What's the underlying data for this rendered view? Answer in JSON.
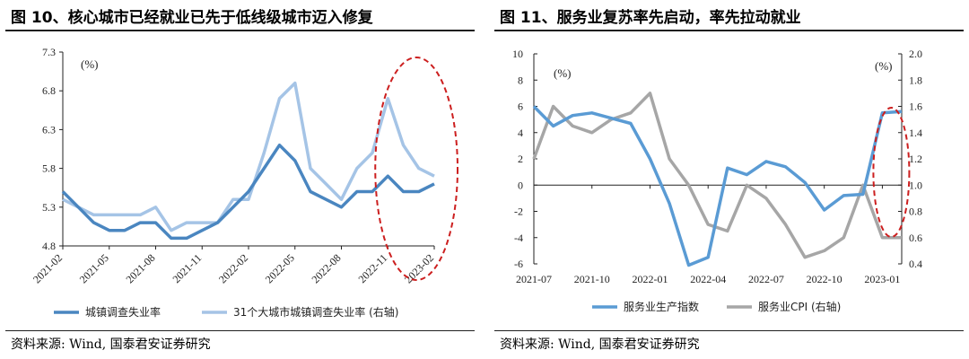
{
  "charts": [
    {
      "title": "图 10、核心城市已经就业已先于低线级城市迈入修复",
      "source": "资料来源: Wind, 国泰君安证券研究",
      "left_unit": "(%)",
      "legend": [
        "城镇调查失业率",
        "31个大城市城镇调查失业率 (右轴)"
      ]
    },
    {
      "title": "图 11、服务业复苏率先启动，率先拉动就业",
      "source": "资料来源: Wind, 国泰君安证券研究",
      "left_unit": "(%)",
      "right_unit": "(%)",
      "legend": [
        "服务业生产指数",
        "服务业CPI (右轴)"
      ]
    }
  ],
  "chart_data": [
    {
      "type": "line",
      "title": "图 10、核心城市已经就业已先于低线级城市迈入修复",
      "x": [
        "2021-02",
        "2021-03",
        "2021-04",
        "2021-05",
        "2021-06",
        "2021-07",
        "2021-08",
        "2021-09",
        "2021-10",
        "2021-11",
        "2021-12",
        "2022-01",
        "2022-02",
        "2022-03",
        "2022-04",
        "2022-05",
        "2022-06",
        "2022-07",
        "2022-08",
        "2022-09",
        "2022-10",
        "2022-11",
        "2022-12",
        "2023-01",
        "2023-02"
      ],
      "xticks": [
        "2021-02",
        "2021-05",
        "2021-08",
        "2021-11",
        "2022-02",
        "2022-05",
        "2022-08",
        "2022-11",
        "2023-02"
      ],
      "ylim": [
        4.8,
        7.3
      ],
      "yticks": [
        "4.8",
        "5.3",
        "5.8",
        "6.3",
        "6.8",
        "7.3"
      ],
      "series": [
        {
          "name": "城镇调查失业率",
          "color": "#4a86c0",
          "values": [
            5.5,
            5.3,
            5.1,
            5.0,
            5.0,
            5.1,
            5.1,
            4.9,
            4.9,
            5.0,
            5.1,
            5.3,
            5.5,
            5.8,
            6.1,
            5.9,
            5.5,
            5.4,
            5.3,
            5.5,
            5.5,
            5.7,
            5.5,
            5.5,
            5.6
          ]
        },
        {
          "name": "31个大城市城镇调查失业率 (右轴)",
          "color": "#a5c4e6",
          "values": [
            5.4,
            5.3,
            5.2,
            5.2,
            5.2,
            5.2,
            5.3,
            5.0,
            5.1,
            5.1,
            5.1,
            5.4,
            5.4,
            6.0,
            6.7,
            6.9,
            5.8,
            5.6,
            5.4,
            5.8,
            6.0,
            6.7,
            6.1,
            5.8,
            5.7
          ]
        }
      ],
      "annotation": "red dashed ellipse highlighting 2022-11 to 2023-02"
    },
    {
      "type": "line",
      "title": "图 11、服务业复苏率先启动，率先拉动就业",
      "x": [
        "2021-07",
        "2021-08",
        "2021-09",
        "2021-10",
        "2021-11",
        "2021-12",
        "2022-01",
        "2022-02",
        "2022-03",
        "2022-04",
        "2022-05",
        "2022-06",
        "2022-07",
        "2022-08",
        "2022-09",
        "2022-10",
        "2022-11",
        "2022-12",
        "2023-01",
        "2023-02"
      ],
      "xticks": [
        "2021-07",
        "2021-10",
        "2022-01",
        "2022-04",
        "2022-07",
        "2022-10",
        "2023-01"
      ],
      "ylim_left": [
        -6,
        10
      ],
      "yticks_left": [
        "-6",
        "-4",
        "-2",
        "0",
        "2",
        "4",
        "6",
        "8",
        "10"
      ],
      "ylim_right": [
        0.4,
        2.0
      ],
      "yticks_right": [
        "0.4",
        "0.6",
        "0.8",
        "1.0",
        "1.2",
        "1.4",
        "1.6",
        "1.8",
        "2.0"
      ],
      "series": [
        {
          "name": "服务业生产指数",
          "axis": "left",
          "color": "#5a9bd4",
          "values": [
            6.0,
            4.5,
            5.3,
            5.5,
            5.1,
            4.7,
            2.0,
            -1.4,
            -6.1,
            -5.5,
            1.3,
            0.8,
            1.8,
            1.4,
            0.2,
            -1.9,
            -0.8,
            -0.7,
            5.5,
            5.6
          ]
        },
        {
          "name": "服务业CPI (右轴)",
          "axis": "right",
          "color": "#a6a6a6",
          "values": [
            1.2,
            1.6,
            1.45,
            1.4,
            1.5,
            1.55,
            1.7,
            1.2,
            1.0,
            0.7,
            0.65,
            1.0,
            0.9,
            0.7,
            0.45,
            0.5,
            0.6,
            1.0,
            0.6,
            0.6
          ]
        }
      ],
      "annotation": "red dashed ellipse highlighting 2023-01 to 2023-02"
    }
  ]
}
